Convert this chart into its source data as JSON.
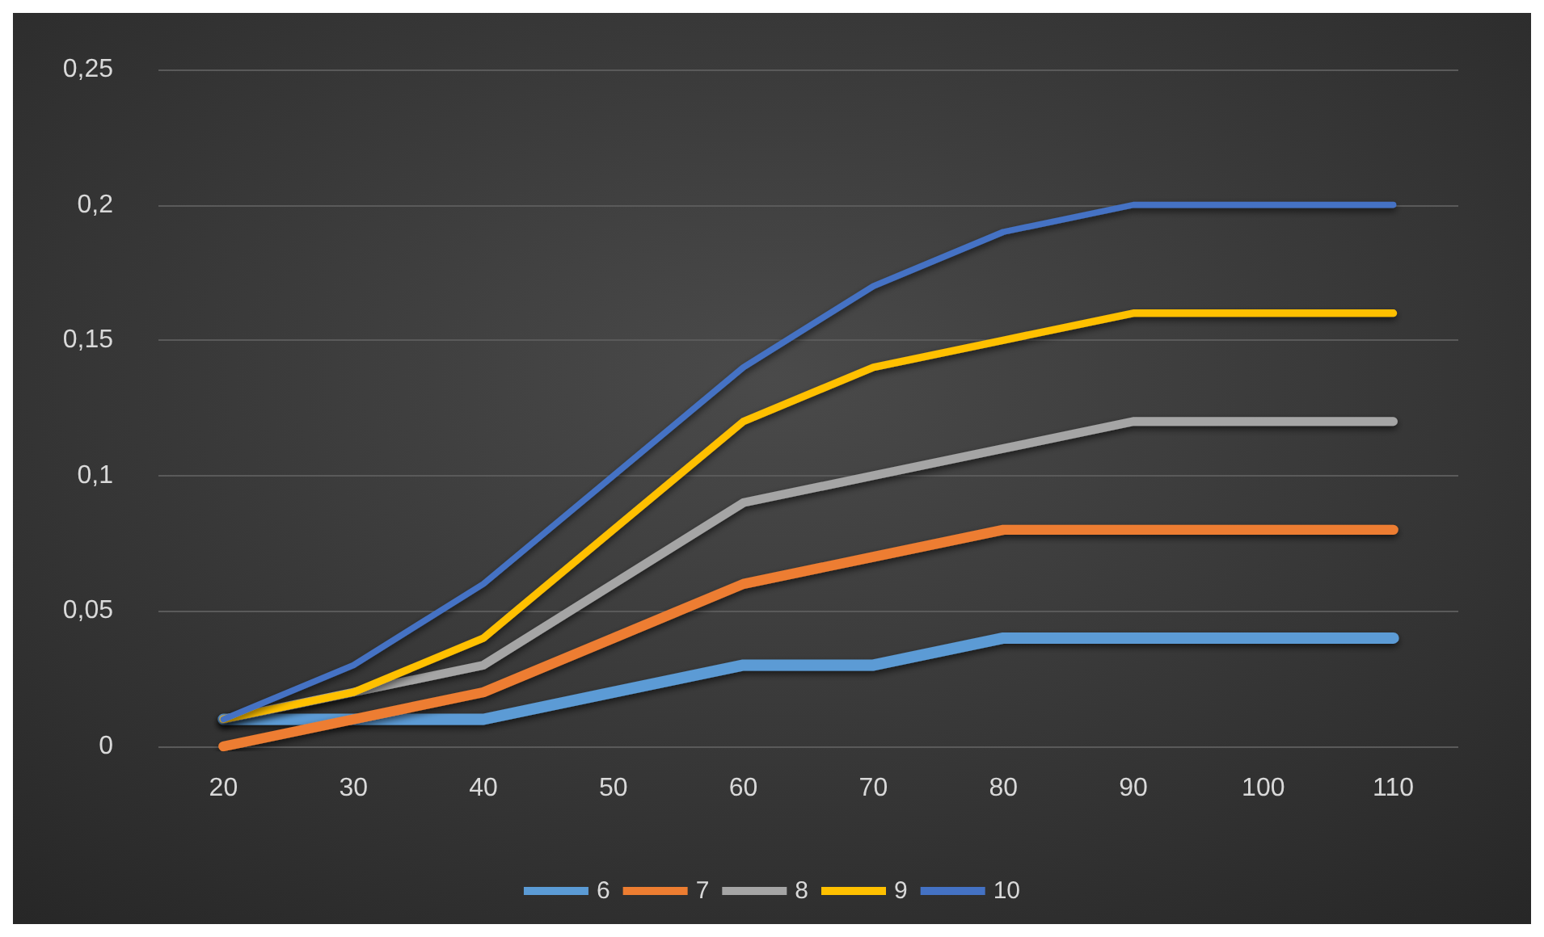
{
  "chart_data": {
    "type": "line",
    "categories": [
      "20",
      "30",
      "40",
      "50",
      "60",
      "70",
      "80",
      "90",
      "100",
      "110"
    ],
    "series": [
      {
        "name": "6",
        "color": "#5b9bd5",
        "values": [
          0.01,
          0.01,
          0.01,
          0.02,
          0.03,
          0.03,
          0.04,
          0.04,
          0.04,
          0.04
        ]
      },
      {
        "name": "7",
        "color": "#ed7d31",
        "values": [
          0,
          0.01,
          0.02,
          0.04,
          0.06,
          0.07,
          0.08,
          0.08,
          0.08,
          0.08
        ]
      },
      {
        "name": "8",
        "color": "#a5a5a5",
        "values": [
          0.01,
          0.02,
          0.03,
          0.06,
          0.09,
          0.1,
          0.11,
          0.12,
          0.12,
          0.12
        ]
      },
      {
        "name": "9",
        "color": "#ffc000",
        "values": [
          0.01,
          0.02,
          0.04,
          0.08,
          0.12,
          0.14,
          0.15,
          0.16,
          0.16,
          0.16
        ]
      },
      {
        "name": "10",
        "color": "#4472c4",
        "values": [
          0.01,
          0.03,
          0.06,
          0.1,
          0.14,
          0.17,
          0.19,
          0.2,
          0.2,
          0.2
        ]
      }
    ],
    "ylim": [
      0,
      0.25
    ],
    "yticks": [
      0,
      {
        "value": 0.05,
        "label": "0,05"
      },
      {
        "value": 0.1,
        "label": "0,1"
      },
      {
        "value": 0.15,
        "label": "0,15"
      },
      {
        "value": 0.2,
        "label": "0,2"
      },
      {
        "value": 0.25,
        "label": "0,25"
      }
    ],
    "grid": "y",
    "legend": "bottom",
    "marker": "none",
    "line_style": "solid"
  }
}
